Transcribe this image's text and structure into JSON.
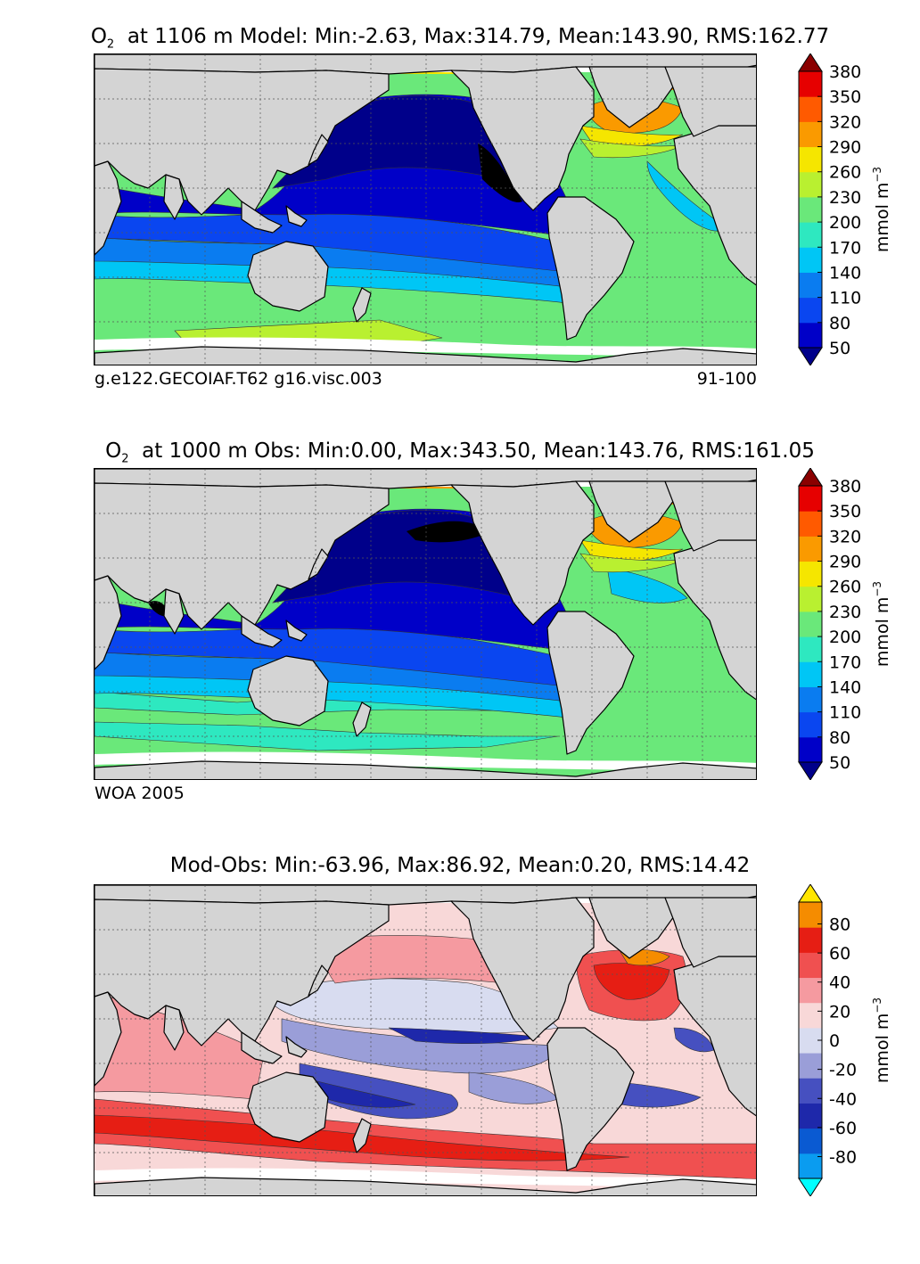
{
  "chart_data": [
    {
      "type": "heatmap",
      "title_prefix": "O",
      "title_sub": "2",
      "title": "at 1106 m Model: Min:-2.63, Max:314.79, Mean:143.90, RMS:162.77",
      "footer_left": "g.e122.GECOIAF.T62 g16.visc.003",
      "footer_right": "91-100",
      "stats": {
        "min": -2.63,
        "max": 314.79,
        "mean": 143.9,
        "rms": 162.77
      },
      "colorbar": {
        "unit": "mmol m",
        "unit_sup": "−3",
        "ticks": [
          "380",
          "350",
          "320",
          "290",
          "260",
          "230",
          "200",
          "170",
          "140",
          "110",
          "80",
          "50"
        ],
        "colors": [
          "#00008a",
          "#0000c8",
          "#0a46f0",
          "#0a7cf0",
          "#00c6f5",
          "#2ee8c0",
          "#6ae87a",
          "#b9f030",
          "#f5e600",
          "#fa9a00",
          "#ff5a00",
          "#e60000",
          "#8a0000"
        ]
      }
    },
    {
      "type": "heatmap",
      "title_prefix": "O",
      "title_sub": "2",
      "title": "at 1000 m Obs: Min:0.00, Max:343.50, Mean:143.76, RMS:161.05",
      "footer_left": "WOA 2005",
      "footer_right": "",
      "stats": {
        "min": 0.0,
        "max": 343.5,
        "mean": 143.76,
        "rms": 161.05
      },
      "colorbar": {
        "unit": "mmol m",
        "unit_sup": "−3",
        "ticks": [
          "380",
          "350",
          "320",
          "290",
          "260",
          "230",
          "200",
          "170",
          "140",
          "110",
          "80",
          "50"
        ],
        "colors": [
          "#00008a",
          "#0000c8",
          "#0a46f0",
          "#0a7cf0",
          "#00c6f5",
          "#2ee8c0",
          "#6ae87a",
          "#b9f030",
          "#f5e600",
          "#fa9a00",
          "#ff5a00",
          "#e60000",
          "#8a0000"
        ]
      }
    },
    {
      "type": "heatmap",
      "title_prefix": "",
      "title_sub": "",
      "title": "Mod-Obs: Min:-63.96, Max:86.92, Mean:0.20, RMS:14.42",
      "footer_left": "",
      "footer_right": "",
      "stats": {
        "min": -63.96,
        "max": 86.92,
        "mean": 0.2,
        "rms": 14.42
      },
      "colorbar": {
        "unit": "mmol m",
        "unit_sup": "−3",
        "ticks": [
          "80",
          "60",
          "40",
          "20",
          "0",
          "-20",
          "-40",
          "-60",
          "-80"
        ],
        "colors": [
          "#00ffff",
          "#0a9cf0",
          "#0a5ad2",
          "#1e28aa",
          "#4650c0",
          "#9a9ed8",
          "#d8dcf0",
          "#f8d8d8",
          "#f59aa0",
          "#f05050",
          "#e61e14",
          "#f58c00",
          "#ffe600"
        ]
      }
    }
  ],
  "colors": {
    "land": "#d4d4d4",
    "missing": "#ffffff",
    "coast": "#000000",
    "grid": "#555555"
  }
}
